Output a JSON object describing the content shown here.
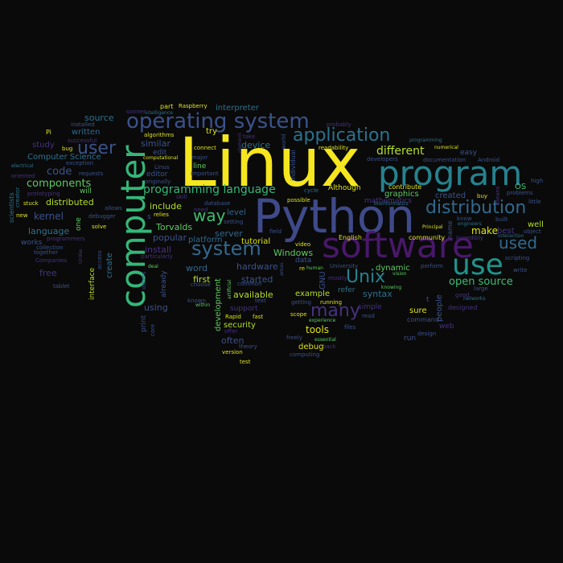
{
  "words": [
    {
      "text": "Linux",
      "size": 84,
      "color": "#f5e61f"
    },
    {
      "text": "Python",
      "size": 58,
      "color": "#3f4a8a"
    },
    {
      "text": "computer",
      "size": 42,
      "color": "#35b779",
      "rot": true
    },
    {
      "text": "software",
      "size": 44,
      "color": "#48186a"
    },
    {
      "text": "program",
      "size": 42,
      "color": "#26828e"
    },
    {
      "text": "use",
      "size": 36,
      "color": "#1f948c"
    },
    {
      "text": "operating system",
      "size": 26,
      "color": "#3b528b"
    },
    {
      "text": "application",
      "size": 22,
      "color": "#2c728e"
    },
    {
      "text": "distribution",
      "size": 22,
      "color": "#31688e"
    },
    {
      "text": "user",
      "size": 22,
      "color": "#3b528b"
    },
    {
      "text": "system",
      "size": 24,
      "color": "#31688e"
    },
    {
      "text": "way",
      "size": 20,
      "color": "#3fbc73"
    },
    {
      "text": "Unix",
      "size": 22,
      "color": "#26828e"
    },
    {
      "text": "many",
      "size": 22,
      "color": "#46327e"
    },
    {
      "text": "used",
      "size": 20,
      "color": "#31688e"
    },
    {
      "text": "programming language",
      "size": 14,
      "color": "#35b779"
    },
    {
      "text": "different",
      "size": 14,
      "color": "#b5de2b"
    },
    {
      "text": "open source",
      "size": 13,
      "color": "#3fbc73"
    },
    {
      "text": "components",
      "size": 13,
      "color": "#5ec962"
    },
    {
      "text": "kernel",
      "size": 12,
      "color": "#3b528b"
    },
    {
      "text": "code",
      "size": 13,
      "color": "#3b528b"
    },
    {
      "text": "distributed",
      "size": 11,
      "color": "#b5de2b"
    },
    {
      "text": "Torvalds",
      "size": 11,
      "color": "#5ec962"
    },
    {
      "text": "include",
      "size": 11,
      "color": "#b5de2b"
    },
    {
      "text": "make",
      "size": 12,
      "color": "#dde318"
    },
    {
      "text": "server",
      "size": 11,
      "color": "#31688e"
    },
    {
      "text": "tools",
      "size": 12,
      "color": "#dde318"
    },
    {
      "text": "Windows",
      "size": 11,
      "color": "#5ec962"
    },
    {
      "text": "hardware",
      "size": 11,
      "color": "#3b528b"
    },
    {
      "text": "available",
      "size": 11,
      "color": "#b5de2b"
    },
    {
      "text": "started",
      "size": 11,
      "color": "#3b528b"
    },
    {
      "text": "syntax",
      "size": 11,
      "color": "#2c728e"
    },
    {
      "text": "source",
      "size": 11,
      "color": "#2c728e"
    },
    {
      "text": "similar",
      "size": 11,
      "color": "#3b528b"
    },
    {
      "text": "written",
      "size": 10,
      "color": "#31688e"
    },
    {
      "text": "interpreter",
      "size": 10,
      "color": "#2c728e"
    },
    {
      "text": "device",
      "size": 11,
      "color": "#2c728e"
    },
    {
      "text": "language",
      "size": 11,
      "color": "#2c728e"
    },
    {
      "text": "Computer Science",
      "size": 10,
      "color": "#2c728e"
    },
    {
      "text": "free",
      "size": 11,
      "color": "#46327e"
    },
    {
      "text": "install",
      "size": 11,
      "color": "#46327e"
    },
    {
      "text": "popular",
      "size": 11,
      "color": "#3b528b"
    },
    {
      "text": "word",
      "size": 11,
      "color": "#31688e"
    },
    {
      "text": "first",
      "size": 11,
      "color": "#b5de2b"
    },
    {
      "text": "using",
      "size": 11,
      "color": "#3b528b"
    },
    {
      "text": "often",
      "size": 11,
      "color": "#3b528b"
    },
    {
      "text": "security",
      "size": 10,
      "color": "#b5de2b"
    },
    {
      "text": "example",
      "size": 10,
      "color": "#b5de2b"
    },
    {
      "text": "debug",
      "size": 10,
      "color": "#dde318"
    },
    {
      "text": "sure",
      "size": 10,
      "color": "#dde318"
    },
    {
      "text": "level",
      "size": 10,
      "color": "#31688e"
    },
    {
      "text": "tutorial",
      "size": 10,
      "color": "#dde318"
    },
    {
      "text": "graphics",
      "size": 10,
      "color": "#5ec962"
    },
    {
      "text": "created",
      "size": 10,
      "color": "#3b528b"
    },
    {
      "text": "try",
      "size": 10,
      "color": "#dde318"
    },
    {
      "text": "study",
      "size": 10,
      "color": "#46327e"
    },
    {
      "text": "platform",
      "size": 10,
      "color": "#31688e"
    },
    {
      "text": "best",
      "size": 10,
      "color": "#46327e"
    },
    {
      "text": "well",
      "size": 10,
      "color": "#b5de2b"
    },
    {
      "text": "OS",
      "size": 10,
      "color": "#3fbc73"
    },
    {
      "text": "dynamic",
      "size": 10,
      "color": "#5ec962"
    },
    {
      "text": "people",
      "size": 10,
      "color": "#3b528b",
      "rot": true
    },
    {
      "text": "development",
      "size": 10,
      "color": "#5ec962",
      "rot": true
    },
    {
      "text": "create",
      "size": 10,
      "color": "#2c728e",
      "rot": true
    },
    {
      "text": "interface",
      "size": 9,
      "color": "#b5de2b",
      "rot": true
    },
    {
      "text": "GNU",
      "size": 10,
      "color": "#3b528b",
      "rot": true
    },
    {
      "text": "refer",
      "size": 9,
      "color": "#2c728e"
    },
    {
      "text": "simple",
      "size": 9,
      "color": "#46327e"
    },
    {
      "text": "web",
      "size": 9,
      "color": "#46327e"
    },
    {
      "text": "run",
      "size": 9,
      "color": "#3b528b"
    },
    {
      "text": "will",
      "size": 9,
      "color": "#5ec962"
    },
    {
      "text": "one",
      "size": 9,
      "color": "#5ec962",
      "rot": true
    },
    {
      "text": "Although",
      "size": 9,
      "color": "#dde318"
    },
    {
      "text": "edit",
      "size": 9,
      "color": "#3b528b"
    },
    {
      "text": "editor",
      "size": 9,
      "color": "#3b528b"
    },
    {
      "text": "line",
      "size": 9,
      "color": "#5ec962"
    },
    {
      "text": "data",
      "size": 9,
      "color": "#3b528b"
    },
    {
      "text": "print",
      "size": 9,
      "color": "#3b528b",
      "rot": true
    },
    {
      "text": "works",
      "size": 9,
      "color": "#3b528b"
    },
    {
      "text": "easy",
      "size": 9,
      "color": "#3b528b"
    },
    {
      "text": "support",
      "size": 9,
      "color": "#46327e"
    },
    {
      "text": "mathematics",
      "size": 9,
      "color": "#46327e"
    },
    {
      "text": "contribute",
      "size": 8,
      "color": "#dde318"
    },
    {
      "text": "community",
      "size": 8,
      "color": "#dde318"
    },
    {
      "text": "English",
      "size": 8,
      "color": "#dde318"
    },
    {
      "text": "designed",
      "size": 8,
      "color": "#46327e"
    },
    {
      "text": "command",
      "size": 8,
      "color": "#3b528b"
    },
    {
      "text": "part",
      "size": 8,
      "color": "#dde318"
    },
    {
      "text": "Raspberry",
      "size": 7,
      "color": "#dde318"
    },
    {
      "text": "Pi",
      "size": 8,
      "color": "#dde318"
    },
    {
      "text": "bug",
      "size": 7,
      "color": "#dde318"
    },
    {
      "text": "new",
      "size": 7,
      "color": "#dde318"
    },
    {
      "text": "stuck",
      "size": 7,
      "color": "#dde318"
    },
    {
      "text": "solve",
      "size": 7,
      "color": "#dde318"
    },
    {
      "text": "buy",
      "size": 7,
      "color": "#dde318"
    },
    {
      "text": "connect",
      "size": 7,
      "color": "#dde318"
    },
    {
      "text": "algorithms",
      "size": 7,
      "color": "#dde318"
    },
    {
      "text": "relies",
      "size": 7,
      "color": "#dde318"
    },
    {
      "text": "possible",
      "size": 7,
      "color": "#dde318"
    },
    {
      "text": "readability",
      "size": 7,
      "color": "#dde318"
    },
    {
      "text": "Rapid",
      "size": 7,
      "color": "#dde318"
    },
    {
      "text": "fast",
      "size": 7,
      "color": "#dde318"
    },
    {
      "text": "test",
      "size": 7,
      "color": "#dde318"
    },
    {
      "text": "version",
      "size": 7,
      "color": "#dde318"
    },
    {
      "text": "scope",
      "size": 7,
      "color": "#dde318"
    },
    {
      "text": "running",
      "size": 7,
      "color": "#dde318"
    },
    {
      "text": "video",
      "size": 7,
      "color": "#dde318"
    },
    {
      "text": "re",
      "size": 7,
      "color": "#dde318"
    },
    {
      "text": "Principal",
      "size": 6,
      "color": "#dde318"
    },
    {
      "text": "numerical",
      "size": 6,
      "color": "#dde318"
    },
    {
      "text": "computational",
      "size": 6,
      "color": "#dde318"
    },
    {
      "text": "important",
      "size": 7,
      "color": "#3b528b"
    },
    {
      "text": "major",
      "size": 7,
      "color": "#3b528b"
    },
    {
      "text": "Linus",
      "size": 7,
      "color": "#3b528b"
    },
    {
      "text": "originally",
      "size": 7,
      "color": "#3b528b"
    },
    {
      "text": "requests",
      "size": 7,
      "color": "#3b528b"
    },
    {
      "text": "allows",
      "size": 7,
      "color": "#3b528b"
    },
    {
      "text": "debugger",
      "size": 7,
      "color": "#3b528b"
    },
    {
      "text": "installed",
      "size": 7,
      "color": "#3b528b"
    },
    {
      "text": "exception",
      "size": 7,
      "color": "#3b528b"
    },
    {
      "text": "collection",
      "size": 7,
      "color": "#3b528b"
    },
    {
      "text": "together",
      "size": 7,
      "color": "#3b528b"
    },
    {
      "text": "tablet",
      "size": 7,
      "color": "#3b528b"
    },
    {
      "text": "developers",
      "size": 7,
      "color": "#3b528b"
    },
    {
      "text": "documentation",
      "size": 7,
      "color": "#3b528b"
    },
    {
      "text": "Android",
      "size": 7,
      "color": "#3b528b"
    },
    {
      "text": "high",
      "size": 7,
      "color": "#3b528b"
    },
    {
      "text": "problems",
      "size": 7,
      "color": "#3b528b"
    },
    {
      "text": "little",
      "size": 7,
      "color": "#3b528b"
    },
    {
      "text": "object",
      "size": 7,
      "color": "#3b528b"
    },
    {
      "text": "scripting",
      "size": 7,
      "color": "#3b528b"
    },
    {
      "text": "write",
      "size": 7,
      "color": "#3b528b"
    },
    {
      "text": "built",
      "size": 7,
      "color": "#3b528b"
    },
    {
      "text": "know",
      "size": 7,
      "color": "#3b528b"
    },
    {
      "text": "large",
      "size": 7,
      "color": "#3b528b"
    },
    {
      "text": "perform",
      "size": 7,
      "color": "#3b528b"
    },
    {
      "text": "design",
      "size": 7,
      "color": "#3b528b"
    },
    {
      "text": "read",
      "size": 7,
      "color": "#3b528b"
    },
    {
      "text": "files",
      "size": 7,
      "color": "#3b528b"
    },
    {
      "text": "getting",
      "size": 7,
      "color": "#3b528b"
    },
    {
      "text": "freely",
      "size": 7,
      "color": "#3b528b"
    },
    {
      "text": "computing",
      "size": 7,
      "color": "#3b528b"
    },
    {
      "text": "theory",
      "size": 7,
      "color": "#3b528b"
    },
    {
      "text": "text",
      "size": 7,
      "color": "#3b528b"
    },
    {
      "text": "common",
      "size": 7,
      "color": "#3b528b"
    },
    {
      "text": "choose",
      "size": 7,
      "color": "#3b528b"
    },
    {
      "text": "known",
      "size": 7,
      "color": "#3b528b"
    },
    {
      "text": "setting",
      "size": 7,
      "color": "#3b528b"
    },
    {
      "text": "database",
      "size": 7,
      "color": "#3b528b"
    },
    {
      "text": "field",
      "size": 7,
      "color": "#3b528b"
    },
    {
      "text": "University",
      "size": 7,
      "color": "#3b528b"
    },
    {
      "text": "Companies",
      "size": 7,
      "color": "#46327e"
    },
    {
      "text": "prototyping",
      "size": 7,
      "color": "#46327e"
    },
    {
      "text": "programmers",
      "size": 7,
      "color": "#46327e"
    },
    {
      "text": "skill",
      "size": 7,
      "color": "#46327e"
    },
    {
      "text": "need",
      "size": 7,
      "color": "#46327e"
    },
    {
      "text": "particularly",
      "size": 7,
      "color": "#46327e"
    },
    {
      "text": "successful",
      "size": 7,
      "color": "#46327e"
    },
    {
      "text": "oriented",
      "size": 7,
      "color": "#46327e"
    },
    {
      "text": "probably",
      "size": 7,
      "color": "#46327e"
    },
    {
      "text": "sooner",
      "size": 7,
      "color": "#46327e"
    },
    {
      "text": "mostly",
      "size": 7,
      "color": "#46327e"
    },
    {
      "text": "incredibly",
      "size": 7,
      "color": "#46327e"
    },
    {
      "text": "offer",
      "size": 7,
      "color": "#46327e"
    },
    {
      "text": "back",
      "size": 7,
      "color": "#46327e"
    },
    {
      "text": "good",
      "size": 7,
      "color": "#46327e"
    },
    {
      "text": "take",
      "size": 7,
      "color": "#46327e"
    },
    {
      "text": "electrical",
      "size": 6,
      "color": "#2c728e"
    },
    {
      "text": "intelligence",
      "size": 6,
      "color": "#2c728e"
    },
    {
      "text": "interaction",
      "size": 6,
      "color": "#2c728e"
    },
    {
      "text": "engineers",
      "size": 6,
      "color": "#2c728e"
    },
    {
      "text": "networks",
      "size": 6,
      "color": "#2c728e"
    },
    {
      "text": "bioinformatics",
      "size": 6,
      "color": "#2c728e"
    },
    {
      "text": "programming",
      "size": 6,
      "color": "#2c728e"
    },
    {
      "text": "vision",
      "size": 6,
      "color": "#5ec962"
    },
    {
      "text": "knowing",
      "size": 6,
      "color": "#5ec962"
    },
    {
      "text": "within",
      "size": 6,
      "color": "#5ec962"
    },
    {
      "text": "deal",
      "size": 6,
      "color": "#5ec962"
    },
    {
      "text": "human",
      "size": 6,
      "color": "#5ec962"
    },
    {
      "text": "experience",
      "size": 6,
      "color": "#5ec962"
    },
    {
      "text": "essential",
      "size": 6,
      "color": "#5ec962"
    },
    {
      "text": "scientists",
      "size": 8,
      "color": "#2c728e",
      "rot": true
    },
    {
      "text": "creator",
      "size": 7,
      "color": "#2c728e",
      "rot": true
    },
    {
      "text": "others",
      "size": 7,
      "color": "#3b528b",
      "rot": true
    },
    {
      "text": "core",
      "size": 7,
      "color": "#3b528b",
      "rot": true
    },
    {
      "text": "already",
      "size": 9,
      "color": "#3b528b",
      "rot": true
    },
    {
      "text": "access",
      "size": 7,
      "color": "#3b528b",
      "rot": true
    },
    {
      "text": "individual",
      "size": 8,
      "color": "#3b528b",
      "rot": true
    },
    {
      "text": "world",
      "size": 7,
      "color": "#3b528b",
      "rot": true
    },
    {
      "text": "cycle",
      "size": 7,
      "color": "#2c728e"
    },
    {
      "text": "name",
      "size": 8,
      "color": "#3b528b",
      "rot": true
    },
    {
      "text": "means",
      "size": 7,
      "color": "#46327e",
      "rot": true
    },
    {
      "text": "artificial",
      "size": 6,
      "color": "#5ec962",
      "rot": true
    },
    {
      "text": "Unlike",
      "size": 6,
      "color": "#46327e",
      "rot": true
    },
    {
      "text": "areas",
      "size": 6,
      "color": "#3b528b",
      "rot": true
    },
    {
      "text": "element",
      "size": 6,
      "color": "#46327e",
      "rot": true
    },
    {
      "text": "t",
      "size": 9,
      "color": "#3b528b"
    },
    {
      "text": "s",
      "size": 9,
      "color": "#3b528b"
    }
  ]
}
